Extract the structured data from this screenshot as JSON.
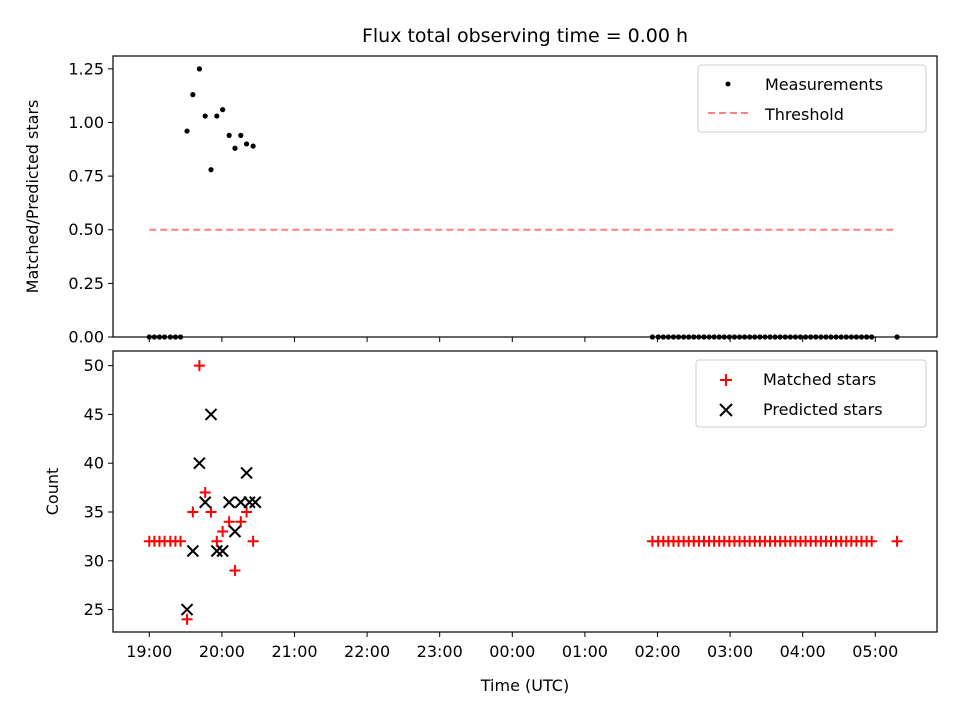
{
  "chart_data": {
    "type": "scatter",
    "title": "Flux total observing time = 0.00 h",
    "xlabel": "Time (UTC)",
    "x_unit": "hours since 19:00 UTC",
    "xlim": [
      -0.5,
      10.85
    ],
    "x_ticks": [
      {
        "value": 0,
        "label": "19:00"
      },
      {
        "value": 1,
        "label": "20:00"
      },
      {
        "value": 2,
        "label": "21:00"
      },
      {
        "value": 3,
        "label": "22:00"
      },
      {
        "value": 4,
        "label": "23:00"
      },
      {
        "value": 5,
        "label": "00:00"
      },
      {
        "value": 6,
        "label": "01:00"
      },
      {
        "value": 7,
        "label": "02:00"
      },
      {
        "value": 8,
        "label": "03:00"
      },
      {
        "value": 9,
        "label": "04:00"
      },
      {
        "value": 10,
        "label": "05:00"
      }
    ],
    "top": {
      "ylabel": "Matched/Predicted stars",
      "ylim": [
        0,
        1.31
      ],
      "y_ticks": [
        {
          "value": 0,
          "label": "0.00"
        },
        {
          "value": 0.25,
          "label": "0.25"
        },
        {
          "value": 0.5,
          "label": "0.50"
        },
        {
          "value": 0.75,
          "label": "0.75"
        },
        {
          "value": 1.0,
          "label": "1.00"
        },
        {
          "value": 1.25,
          "label": "1.25"
        }
      ],
      "legend_position": "top-right",
      "series": [
        {
          "name": "Measurements",
          "kind": "points",
          "color": "#000000",
          "points": [
            [
              0.0,
              0.0
            ],
            [
              0.07,
              0.0
            ],
            [
              0.14,
              0.0
            ],
            [
              0.21,
              0.0
            ],
            [
              0.29,
              0.0
            ],
            [
              0.36,
              0.0
            ],
            [
              0.43,
              0.0
            ],
            [
              0.52,
              0.96
            ],
            [
              0.6,
              1.13
            ],
            [
              0.69,
              1.25
            ],
            [
              0.77,
              1.03
            ],
            [
              0.85,
              0.78
            ],
            [
              0.93,
              1.03
            ],
            [
              1.01,
              1.06
            ],
            [
              1.1,
              0.94
            ],
            [
              1.18,
              0.88
            ],
            [
              1.26,
              0.94
            ],
            [
              1.34,
              0.9
            ],
            [
              1.43,
              0.89
            ],
            [
              6.93,
              0.0
            ],
            [
              7.01,
              0.0
            ],
            [
              7.08,
              0.0
            ],
            [
              7.15,
              0.0
            ],
            [
              7.22,
              0.0
            ],
            [
              7.29,
              0.0
            ],
            [
              7.36,
              0.0
            ],
            [
              7.43,
              0.0
            ],
            [
              7.5,
              0.0
            ],
            [
              7.57,
              0.0
            ],
            [
              7.64,
              0.0
            ],
            [
              7.71,
              0.0
            ],
            [
              7.78,
              0.0
            ],
            [
              7.85,
              0.0
            ],
            [
              7.92,
              0.0
            ],
            [
              7.99,
              0.0
            ],
            [
              8.06,
              0.0
            ],
            [
              8.13,
              0.0
            ],
            [
              8.2,
              0.0
            ],
            [
              8.27,
              0.0
            ],
            [
              8.34,
              0.0
            ],
            [
              8.41,
              0.0
            ],
            [
              8.48,
              0.0
            ],
            [
              8.55,
              0.0
            ],
            [
              8.62,
              0.0
            ],
            [
              8.69,
              0.0
            ],
            [
              8.76,
              0.0
            ],
            [
              8.83,
              0.0
            ],
            [
              8.9,
              0.0
            ],
            [
              8.97,
              0.0
            ],
            [
              9.04,
              0.0
            ],
            [
              9.11,
              0.0
            ],
            [
              9.18,
              0.0
            ],
            [
              9.25,
              0.0
            ],
            [
              9.32,
              0.0
            ],
            [
              9.39,
              0.0
            ],
            [
              9.46,
              0.0
            ],
            [
              9.53,
              0.0
            ],
            [
              9.6,
              0.0
            ],
            [
              9.67,
              0.0
            ],
            [
              9.74,
              0.0
            ],
            [
              9.81,
              0.0
            ],
            [
              9.88,
              0.0
            ],
            [
              9.95,
              0.0
            ],
            [
              10.3,
              0.0
            ]
          ]
        },
        {
          "name": "Threshold",
          "kind": "dashed-line",
          "color": "#ff8080",
          "points": [
            [
              0.0,
              0.5
            ],
            [
              10.3,
              0.5
            ]
          ]
        }
      ]
    },
    "bottom": {
      "ylabel": "Count",
      "ylim": [
        22.7,
        51.5
      ],
      "y_ticks": [
        {
          "value": 25,
          "label": "25"
        },
        {
          "value": 30,
          "label": "30"
        },
        {
          "value": 35,
          "label": "35"
        },
        {
          "value": 40,
          "label": "40"
        },
        {
          "value": 45,
          "label": "45"
        },
        {
          "value": 50,
          "label": "50"
        }
      ],
      "legend_position": "top-right",
      "series": [
        {
          "name": "Matched stars",
          "kind": "plus",
          "color": "#ff0000",
          "points": [
            [
              0.0,
              32
            ],
            [
              0.07,
              32
            ],
            [
              0.14,
              32
            ],
            [
              0.21,
              32
            ],
            [
              0.29,
              32
            ],
            [
              0.36,
              32
            ],
            [
              0.43,
              32
            ],
            [
              0.52,
              24
            ],
            [
              0.6,
              35
            ],
            [
              0.69,
              50
            ],
            [
              0.77,
              37
            ],
            [
              0.85,
              35
            ],
            [
              0.93,
              32
            ],
            [
              1.01,
              33
            ],
            [
              1.1,
              34
            ],
            [
              1.18,
              29
            ],
            [
              1.26,
              34
            ],
            [
              1.34,
              35
            ],
            [
              1.43,
              32
            ],
            [
              6.93,
              32
            ],
            [
              7.01,
              32
            ],
            [
              7.08,
              32
            ],
            [
              7.15,
              32
            ],
            [
              7.22,
              32
            ],
            [
              7.29,
              32
            ],
            [
              7.36,
              32
            ],
            [
              7.43,
              32
            ],
            [
              7.5,
              32
            ],
            [
              7.57,
              32
            ],
            [
              7.64,
              32
            ],
            [
              7.71,
              32
            ],
            [
              7.78,
              32
            ],
            [
              7.85,
              32
            ],
            [
              7.92,
              32
            ],
            [
              7.99,
              32
            ],
            [
              8.06,
              32
            ],
            [
              8.13,
              32
            ],
            [
              8.2,
              32
            ],
            [
              8.27,
              32
            ],
            [
              8.34,
              32
            ],
            [
              8.41,
              32
            ],
            [
              8.48,
              32
            ],
            [
              8.55,
              32
            ],
            [
              8.62,
              32
            ],
            [
              8.69,
              32
            ],
            [
              8.76,
              32
            ],
            [
              8.83,
              32
            ],
            [
              8.9,
              32
            ],
            [
              8.97,
              32
            ],
            [
              9.04,
              32
            ],
            [
              9.11,
              32
            ],
            [
              9.18,
              32
            ],
            [
              9.25,
              32
            ],
            [
              9.32,
              32
            ],
            [
              9.39,
              32
            ],
            [
              9.46,
              32
            ],
            [
              9.53,
              32
            ],
            [
              9.6,
              32
            ],
            [
              9.67,
              32
            ],
            [
              9.74,
              32
            ],
            [
              9.81,
              32
            ],
            [
              9.88,
              32
            ],
            [
              9.95,
              32
            ],
            [
              10.3,
              32
            ]
          ]
        },
        {
          "name": "Predicted stars",
          "kind": "cross",
          "color": "#000000",
          "points": [
            [
              0.52,
              25
            ],
            [
              0.6,
              31
            ],
            [
              0.69,
              40
            ],
            [
              0.77,
              36
            ],
            [
              0.85,
              45
            ],
            [
              0.93,
              31
            ],
            [
              1.01,
              31
            ],
            [
              1.1,
              36
            ],
            [
              1.18,
              33
            ],
            [
              1.26,
              36
            ],
            [
              1.34,
              39
            ],
            [
              1.38,
              36
            ],
            [
              1.46,
              36
            ]
          ]
        }
      ]
    }
  }
}
